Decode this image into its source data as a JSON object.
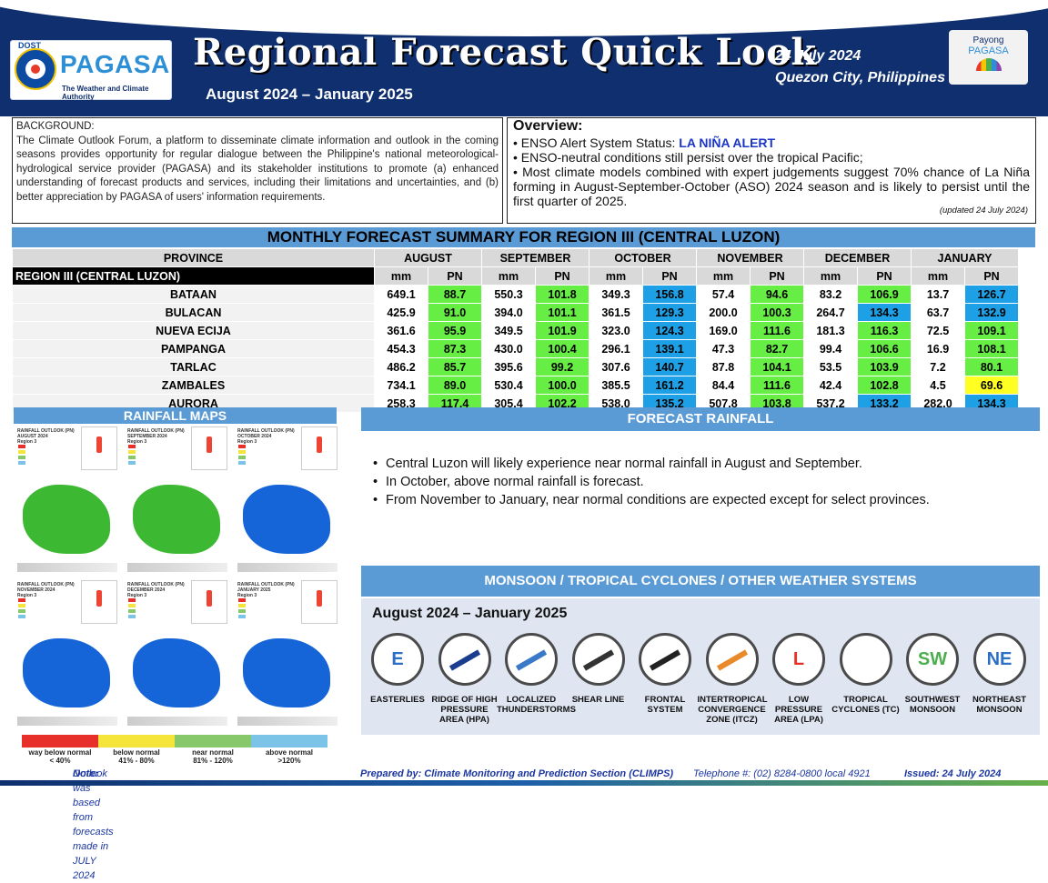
{
  "header": {
    "logo_top": "DOST",
    "logo_name": "PAGASA",
    "logo_sub": "The Weather and Climate Authority",
    "title": "Regional Forecast Quick Look",
    "period": "August 2024 – January 2025",
    "issue_date": "24 July 2024",
    "issue_place": "Quezon City, Philippines",
    "payong_line1": "Payong",
    "payong_line2": "PAGASA"
  },
  "background": {
    "title": "BACKGROUND:",
    "text": "The Climate Outlook Forum, a platform to disseminate climate information and outlook in the coming seasons provides opportunity for regular dialogue between the Philippine's national meteorological-hydrological service provider (PAGASA) and its stakeholder institutions to promote (a) enhanced understanding of forecast products and services, including their limitations and uncertainties, and (b) better appreciation by PAGASA of users' information requirements."
  },
  "overview": {
    "title": "Overview:",
    "enso_label": "• ENSO Alert System Status: ",
    "enso_status": "LA NIÑA ALERT",
    "line2": "• ENSO-neutral conditions still persist over the tropical Pacific;",
    "line3": "• Most climate models combined with expert judgements suggest 70% chance of La Niña forming in August-September-October (ASO) 2024 season and is likely to persist until the first quarter of 2025.",
    "updated": "(updated 24 July 2024)"
  },
  "table": {
    "title": "MONTHLY FORECAST SUMMARY FOR REGION III (CENTRAL LUZON)",
    "province_header": "PROVINCE",
    "region_label": "REGION III (CENTRAL LUZON)",
    "months": [
      "AUGUST",
      "SEPTEMBER",
      "OCTOBER",
      "NOVEMBER",
      "DECEMBER",
      "JANUARY"
    ],
    "sub_mm": "mm",
    "sub_pn": "PN",
    "rows": [
      {
        "province": "BATAAN",
        "mm": [
          "649.1",
          "550.3",
          "349.3",
          "57.4",
          "83.2",
          "13.7"
        ],
        "pn": [
          "88.7",
          "101.8",
          "156.8",
          "94.6",
          "106.9",
          "126.7"
        ]
      },
      {
        "province": "BULACAN",
        "mm": [
          "425.9",
          "394.0",
          "361.5",
          "200.0",
          "264.7",
          "63.7"
        ],
        "pn": [
          "91.0",
          "101.1",
          "129.3",
          "100.3",
          "134.3",
          "132.9"
        ]
      },
      {
        "province": "NUEVA ECIJA",
        "mm": [
          "361.6",
          "349.5",
          "323.0",
          "169.0",
          "181.3",
          "72.5"
        ],
        "pn": [
          "95.9",
          "101.9",
          "124.3",
          "111.6",
          "116.3",
          "109.1"
        ]
      },
      {
        "province": "PAMPANGA",
        "mm": [
          "454.3",
          "430.0",
          "296.1",
          "47.3",
          "99.4",
          "16.9"
        ],
        "pn": [
          "87.3",
          "100.4",
          "139.1",
          "82.7",
          "106.6",
          "108.1"
        ]
      },
      {
        "province": "TARLAC",
        "mm": [
          "486.2",
          "395.6",
          "307.6",
          "87.8",
          "53.5",
          "7.2"
        ],
        "pn": [
          "85.7",
          "99.2",
          "140.7",
          "104.1",
          "103.9",
          "80.1"
        ]
      },
      {
        "province": "ZAMBALES",
        "mm": [
          "734.1",
          "530.4",
          "385.5",
          "84.4",
          "42.4",
          "4.5"
        ],
        "pn": [
          "89.0",
          "100.0",
          "161.2",
          "111.6",
          "102.8",
          "69.6"
        ]
      },
      {
        "province": "AURORA",
        "mm": [
          "258.3",
          "305.4",
          "538.0",
          "507.8",
          "537.2",
          "282.0"
        ],
        "pn": [
          "117.4",
          "102.2",
          "135.2",
          "103.8",
          "133.2",
          "134.3"
        ]
      }
    ],
    "pn_colors": {
      "green": "#66ee44",
      "blue": "#1ea0e6",
      "yellow": "#ffff22"
    }
  },
  "maps": {
    "title": "RAINFALL MAPS",
    "panels": [
      {
        "head": "RAINFALL OUTLOOK (PN)\nAUGUST 2024\nRegion 3",
        "color": "#3db833"
      },
      {
        "head": "RAINFALL OUTLOOK (PN)\nSEPTEMBER 2024\nRegion 3",
        "color": "#3db833"
      },
      {
        "head": "RAINFALL OUTLOOK (PN)\nOCTOBER 2024\nRegion 3",
        "color": "#1565d8"
      },
      {
        "head": "RAINFALL OUTLOOK (PN)\nNOVEMBER 2024\nRegion 3",
        "color": "#1565d8"
      },
      {
        "head": "RAINFALL OUTLOOK (PN)\nDECEMBER 2024\nRegion 3",
        "color": "#1565d8"
      },
      {
        "head": "RAINFALL OUTLOOK (PN)\nJANUARY 2025\nRegion 3",
        "color": "#1565d8"
      }
    ],
    "legend": [
      {
        "label": "way below normal",
        "range": "< 40%",
        "color": "#e8302a"
      },
      {
        "label": "below normal",
        "range": "41% - 80%",
        "color": "#f5e53a"
      },
      {
        "label": "near normal",
        "range": "81% - 120%",
        "color": "#86c86a"
      },
      {
        "label": "above normal",
        "range": ">120%",
        "color": "#7cc3e8"
      }
    ]
  },
  "forecast": {
    "title": "FORECAST RAINFALL",
    "items": [
      "Central Luzon will likely experience near normal rainfall in August and September.",
      "In October, above normal rainfall is forecast.",
      "From November to January, near normal conditions are expected except for select provinces."
    ]
  },
  "systems": {
    "title": "MONSOON  / TROPICAL CYCLONES / OTHER WEATHER SYSTEMS",
    "period": "August 2024 – January 2025",
    "items": [
      {
        "icon": "easterlies-icon",
        "glyph": "E",
        "label": "EASTERLIES"
      },
      {
        "icon": "high-pressure-icon",
        "glyph": "",
        "label": "RIDGE OF HIGH PRESSURE AREA (HPA)"
      },
      {
        "icon": "thunderstorm-icon",
        "glyph": "",
        "label": "LOCALIZED THUNDERSTORMS"
      },
      {
        "icon": "shear-line-icon",
        "glyph": "",
        "label": "SHEAR LINE"
      },
      {
        "icon": "frontal-system-icon",
        "glyph": "",
        "label": "FRONTAL SYSTEM"
      },
      {
        "icon": "itcz-icon",
        "glyph": "",
        "label": "INTERTROPICAL CONVERGENCE ZONE (ITCZ)"
      },
      {
        "icon": "low-pressure-icon",
        "glyph": "L",
        "label": "LOW PRESSURE AREA (LPA)"
      },
      {
        "icon": "tropical-cyclone-icon",
        "glyph": "෡",
        "label": "TROPICAL CYCLONES (TC)"
      },
      {
        "icon": "southwest-monsoon-icon",
        "glyph": "SW",
        "label": "SOUTHWEST MONSOON"
      },
      {
        "icon": "northeast-monsoon-icon",
        "glyph": "NE",
        "label": "NORTHEAST MONSOON"
      }
    ]
  },
  "footer": {
    "note_label": "Note:",
    "note_text": "Outlook was based from forecasts made in JULY 2024",
    "prepared": "Prepared by: Climate Monitoring and Prediction Section (CLIMPS)",
    "telephone": "Telephone #: (02) 8284-0800 local 4921",
    "issued": "Issued: 24 July 2024"
  }
}
